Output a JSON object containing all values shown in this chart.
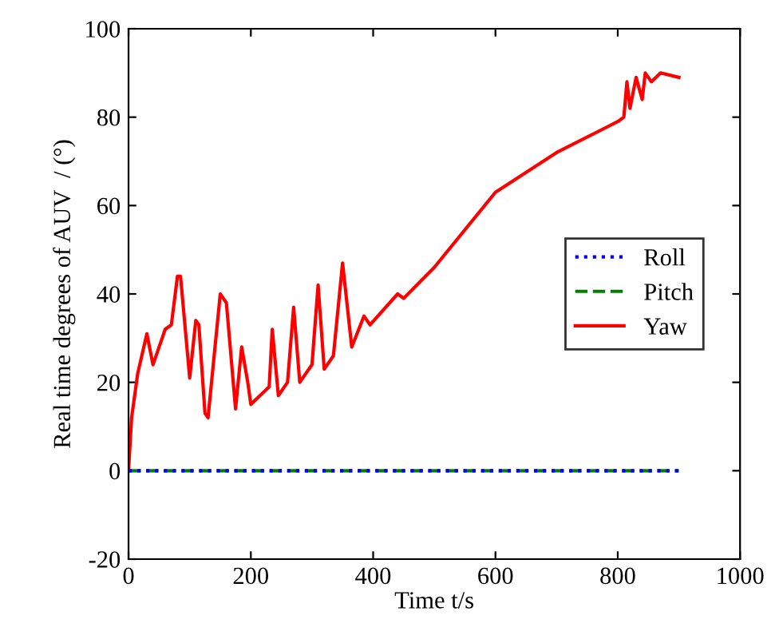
{
  "chart_data": {
    "type": "line",
    "xlabel": "Time t/s",
    "ylabel": "Real time degrees of AUV  / (°)",
    "xlim": [
      0,
      1000
    ],
    "ylim": [
      -20,
      100
    ],
    "xticks": [
      0,
      200,
      400,
      600,
      800,
      1000
    ],
    "yticks": [
      -20,
      0,
      20,
      40,
      60,
      80,
      100
    ],
    "grid": false,
    "legend": "right",
    "series": [
      {
        "name": "Roll",
        "color": "#0000ff",
        "line_style": "dotted",
        "x": [
          0,
          100,
          200,
          300,
          400,
          500,
          600,
          700,
          800,
          900
        ],
        "values": [
          0,
          0,
          0,
          0,
          0,
          0,
          0,
          0,
          0,
          0
        ]
      },
      {
        "name": "Pitch",
        "color": "#008000",
        "line_style": "dashed",
        "x": [
          0,
          100,
          200,
          300,
          400,
          500,
          600,
          700,
          800,
          900
        ],
        "values": [
          0,
          0,
          0,
          0,
          0,
          0,
          0,
          0,
          0,
          0
        ]
      },
      {
        "name": "Yaw",
        "color": "#ff0000",
        "line_style": "solid",
        "x": [
          0,
          5,
          15,
          30,
          40,
          50,
          60,
          70,
          80,
          85,
          100,
          110,
          115,
          125,
          130,
          150,
          160,
          175,
          185,
          195,
          200,
          230,
          235,
          245,
          260,
          270,
          280,
          300,
          310,
          320,
          335,
          350,
          365,
          385,
          395,
          440,
          450,
          500,
          600,
          700,
          800,
          810,
          815,
          820,
          830,
          840,
          845,
          855,
          870,
          900
        ],
        "values": [
          0,
          12,
          22,
          31,
          24,
          28,
          32,
          33,
          44,
          44,
          21,
          34,
          33,
          13,
          12,
          40,
          38,
          14,
          28,
          20,
          15,
          19,
          32,
          17,
          20,
          37,
          20,
          24,
          42,
          23,
          26,
          47,
          28,
          35,
          33,
          40,
          39,
          46,
          63,
          72,
          79,
          80,
          88,
          82,
          89,
          84,
          90,
          88,
          90,
          89
        ]
      }
    ]
  }
}
